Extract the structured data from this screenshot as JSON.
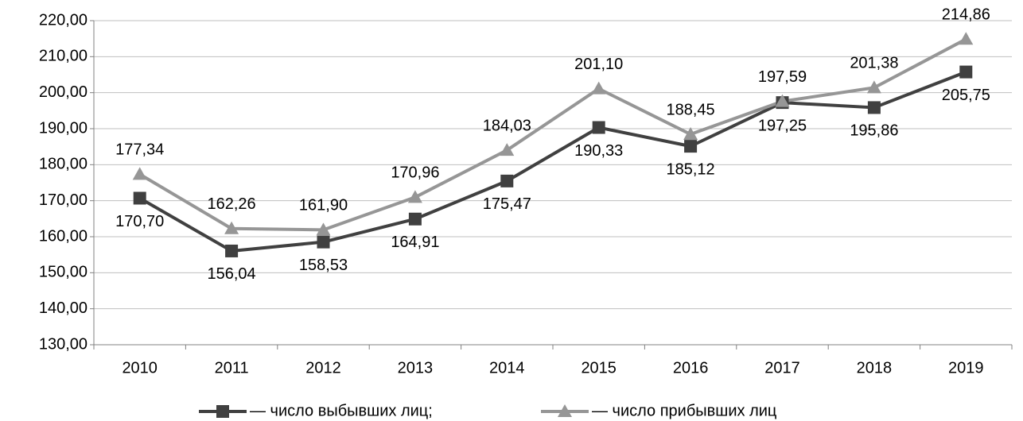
{
  "chart_data": {
    "type": "line",
    "categories": [
      "2010",
      "2011",
      "2012",
      "2013",
      "2014",
      "2015",
      "2016",
      "2017",
      "2018",
      "2019"
    ],
    "series": [
      {
        "name": "— число выбывших лиц;",
        "color": "#404040",
        "marker": "square",
        "values": [
          170.7,
          156.04,
          158.53,
          164.91,
          175.47,
          190.33,
          185.12,
          197.25,
          195.86,
          205.75
        ],
        "value_labels": [
          "170,70",
          "156,04",
          "158,53",
          "164,91",
          "175,47",
          "190,33",
          "185,12",
          "197,25",
          "195,86",
          "205,75"
        ]
      },
      {
        "name": "— число прибывших лиц",
        "color": "#969696",
        "marker": "triangle",
        "values": [
          177.34,
          162.26,
          161.9,
          170.96,
          184.03,
          201.1,
          188.45,
          197.59,
          201.38,
          214.86
        ],
        "value_labels": [
          "177,34",
          "162,26",
          "161,90",
          "170,96",
          "184,03",
          "201,10",
          "188,45",
          "197,59",
          "201,38",
          "214,86"
        ]
      }
    ],
    "ylim": [
      130,
      220
    ],
    "yticks": [
      {
        "value": 130,
        "label": "130,00"
      },
      {
        "value": 140,
        "label": "140,00"
      },
      {
        "value": 150,
        "label": "150,00"
      },
      {
        "value": 160,
        "label": "160,00"
      },
      {
        "value": 170,
        "label": "170,00"
      },
      {
        "value": 180,
        "label": "180,00"
      },
      {
        "value": 190,
        "label": "190,00"
      },
      {
        "value": 200,
        "label": "200,00"
      },
      {
        "value": 210,
        "label": "210,00"
      },
      {
        "value": 220,
        "label": "220,00"
      }
    ],
    "grid": true,
    "legend": "bottom"
  }
}
